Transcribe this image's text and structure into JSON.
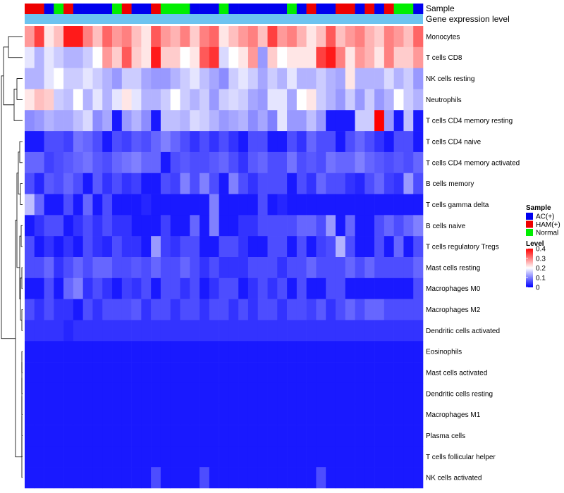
{
  "chart_data": {
    "type": "heatmap",
    "annotations": [
      {
        "name": "Sample"
      },
      {
        "name": "Gene expression level"
      }
    ],
    "sample_groups": [
      "HAM(+)",
      "HAM(+)",
      "AC(+)",
      "Normal",
      "HAM(+)",
      "AC(+)",
      "AC(+)",
      "AC(+)",
      "AC(+)",
      "Normal",
      "HAM(+)",
      "AC(+)",
      "AC(+)",
      "HAM(+)",
      "Normal",
      "Normal",
      "Normal",
      "AC(+)",
      "AC(+)",
      "AC(+)",
      "Normal",
      "AC(+)",
      "AC(+)",
      "AC(+)",
      "AC(+)",
      "AC(+)",
      "AC(+)",
      "Normal",
      "AC(+)",
      "HAM(+)",
      "AC(+)",
      "AC(+)",
      "HAM(+)",
      "HAM(+)",
      "AC(+)",
      "HAM(+)",
      "AC(+)",
      "HAM(+)",
      "Normal",
      "Normal",
      "AC(+)"
    ],
    "rows": [
      "Monocytes",
      "T cells CD8",
      "NK cells resting",
      "Neutrophils",
      "T cells CD4 memory resting",
      "T cells CD4 naive",
      "T cells CD4 memory activated",
      "B cells memory",
      "T cells gamma delta",
      "B cells naive",
      "T cells regulatory  Tregs",
      "Mast cells resting",
      "Macrophages M0",
      "Macrophages M2",
      "Dendritic cells activated",
      "Eosinophils",
      "Mast cells activated",
      "Dendritic cells resting",
      "Macrophages M1",
      "Plasma cells",
      "T cells follicular helper",
      "NK cells activated"
    ],
    "values": [
      [
        0.28,
        0.35,
        0.22,
        0.25,
        0.38,
        0.38,
        0.3,
        0.25,
        0.32,
        0.28,
        0.3,
        0.25,
        0.22,
        0.33,
        0.28,
        0.26,
        0.3,
        0.24,
        0.3,
        0.32,
        0.22,
        0.25,
        0.28,
        0.3,
        0.25,
        0.35,
        0.28,
        0.3,
        0.26,
        0.22,
        0.25,
        0.33,
        0.25,
        0.28,
        0.3,
        0.26,
        0.24,
        0.3,
        0.28,
        0.25,
        0.32
      ],
      [
        0.18,
        0.14,
        0.18,
        0.16,
        0.14,
        0.14,
        0.16,
        0.2,
        0.28,
        0.24,
        0.33,
        0.24,
        0.22,
        0.38,
        0.24,
        0.24,
        0.2,
        0.22,
        0.33,
        0.36,
        0.17,
        0.2,
        0.22,
        0.28,
        0.12,
        0.24,
        0.2,
        0.22,
        0.22,
        0.22,
        0.35,
        0.38,
        0.3,
        0.22,
        0.28,
        0.26,
        0.22,
        0.3,
        0.24,
        0.24,
        0.28
      ],
      [
        0.14,
        0.14,
        0.18,
        0.2,
        0.16,
        0.16,
        0.18,
        0.16,
        0.14,
        0.12,
        0.16,
        0.16,
        0.13,
        0.12,
        0.12,
        0.14,
        0.16,
        0.18,
        0.15,
        0.13,
        0.11,
        0.16,
        0.18,
        0.16,
        0.13,
        0.16,
        0.14,
        0.18,
        0.14,
        0.14,
        0.16,
        0.14,
        0.13,
        0.22,
        0.14,
        0.14,
        0.14,
        0.17,
        0.14,
        0.16,
        0.12
      ],
      [
        0.22,
        0.25,
        0.24,
        0.16,
        0.15,
        0.2,
        0.14,
        0.18,
        0.14,
        0.18,
        0.22,
        0.18,
        0.14,
        0.14,
        0.16,
        0.2,
        0.16,
        0.14,
        0.16,
        0.12,
        0.16,
        0.17,
        0.16,
        0.13,
        0.12,
        0.18,
        0.18,
        0.13,
        0.2,
        0.22,
        0.16,
        0.14,
        0.12,
        0.16,
        0.12,
        0.16,
        0.12,
        0.14,
        0.2,
        0.16,
        0.14
      ],
      [
        0.11,
        0.12,
        0.14,
        0.13,
        0.13,
        0.15,
        0.17,
        0.11,
        0.13,
        0.02,
        0.12,
        0.14,
        0.11,
        0.02,
        0.15,
        0.15,
        0.14,
        0.17,
        0.16,
        0.14,
        0.12,
        0.13,
        0.14,
        0.11,
        0.13,
        0.1,
        0.18,
        0.12,
        0.12,
        0.15,
        0.12,
        0.02,
        0.02,
        0.02,
        0.16,
        0.16,
        0.4,
        0.12,
        0.02,
        0.15,
        0.02
      ],
      [
        0.02,
        0.02,
        0.06,
        0.06,
        0.05,
        0.09,
        0.08,
        0.06,
        0.02,
        0.06,
        0.05,
        0.07,
        0.06,
        0.08,
        0.1,
        0.08,
        0.06,
        0.04,
        0.06,
        0.04,
        0.06,
        0.04,
        0.02,
        0.06,
        0.06,
        0.02,
        0.02,
        0.06,
        0.04,
        0.08,
        0.06,
        0.06,
        0.02,
        0.06,
        0.08,
        0.06,
        0.04,
        0.02,
        0.06,
        0.06,
        0.02
      ],
      [
        0.08,
        0.08,
        0.05,
        0.06,
        0.07,
        0.08,
        0.09,
        0.07,
        0.06,
        0.08,
        0.09,
        0.1,
        0.08,
        0.08,
        0.02,
        0.06,
        0.07,
        0.06,
        0.06,
        0.07,
        0.08,
        0.06,
        0.04,
        0.07,
        0.08,
        0.06,
        0.06,
        0.09,
        0.06,
        0.07,
        0.06,
        0.09,
        0.08,
        0.08,
        0.1,
        0.08,
        0.07,
        0.06,
        0.07,
        0.06,
        0.08
      ],
      [
        0.06,
        0.03,
        0.07,
        0.06,
        0.08,
        0.06,
        0.02,
        0.07,
        0.04,
        0.06,
        0.04,
        0.05,
        0.02,
        0.02,
        0.06,
        0.05,
        0.1,
        0.06,
        0.1,
        0.06,
        0.02,
        0.1,
        0.06,
        0.04,
        0.06,
        0.06,
        0.06,
        0.02,
        0.06,
        0.04,
        0.08,
        0.06,
        0.06,
        0.04,
        0.03,
        0.06,
        0.08,
        0.05,
        0.04,
        0.12,
        0.06
      ],
      [
        0.15,
        0.08,
        0.02,
        0.02,
        0.06,
        0.02,
        0.08,
        0.02,
        0.06,
        0.02,
        0.02,
        0.02,
        0.03,
        0.02,
        0.02,
        0.02,
        0.02,
        0.02,
        0.02,
        0.1,
        0.02,
        0.02,
        0.02,
        0.02,
        0.06,
        0.02,
        0.03,
        0.02,
        0.02,
        0.02,
        0.02,
        0.02,
        0.02,
        0.02,
        0.02,
        0.02,
        0.02,
        0.02,
        0.02,
        0.02,
        0.02
      ],
      [
        0.02,
        0.04,
        0.06,
        0.06,
        0.02,
        0.04,
        0.06,
        0.04,
        0.06,
        0.04,
        0.04,
        0.02,
        0.02,
        0.02,
        0.05,
        0.02,
        0.02,
        0.08,
        0.02,
        0.1,
        0.02,
        0.02,
        0.04,
        0.04,
        0.06,
        0.06,
        0.06,
        0.06,
        0.08,
        0.08,
        0.06,
        0.12,
        0.02,
        0.08,
        0.02,
        0.02,
        0.06,
        0.08,
        0.06,
        0.08,
        0.1
      ],
      [
        0.06,
        0.02,
        0.04,
        0.02,
        0.04,
        0.02,
        0.06,
        0.04,
        0.03,
        0.06,
        0.04,
        0.04,
        0.02,
        0.12,
        0.05,
        0.04,
        0.06,
        0.06,
        0.02,
        0.02,
        0.06,
        0.06,
        0.04,
        0.02,
        0.02,
        0.06,
        0.06,
        0.02,
        0.06,
        0.02,
        0.05,
        0.06,
        0.14,
        0.06,
        0.02,
        0.02,
        0.06,
        0.02,
        0.08,
        0.02,
        0.06
      ],
      [
        0.06,
        0.06,
        0.08,
        0.04,
        0.06,
        0.08,
        0.06,
        0.08,
        0.08,
        0.06,
        0.06,
        0.07,
        0.06,
        0.08,
        0.06,
        0.06,
        0.08,
        0.06,
        0.04,
        0.06,
        0.04,
        0.04,
        0.04,
        0.06,
        0.06,
        0.06,
        0.04,
        0.06,
        0.06,
        0.08,
        0.06,
        0.06,
        0.06,
        0.08,
        0.06,
        0.08,
        0.06,
        0.06,
        0.06,
        0.06,
        0.08
      ],
      [
        0.02,
        0.02,
        0.06,
        0.02,
        0.08,
        0.1,
        0.04,
        0.06,
        0.04,
        0.02,
        0.05,
        0.04,
        0.06,
        0.02,
        0.06,
        0.06,
        0.04,
        0.06,
        0.02,
        0.04,
        0.06,
        0.06,
        0.02,
        0.04,
        0.06,
        0.04,
        0.06,
        0.02,
        0.06,
        0.02,
        0.02,
        0.06,
        0.06,
        0.02,
        0.02,
        0.02,
        0.02,
        0.02,
        0.02,
        0.02,
        0.06
      ],
      [
        0.06,
        0.04,
        0.06,
        0.04,
        0.04,
        0.02,
        0.06,
        0.04,
        0.06,
        0.06,
        0.06,
        0.07,
        0.04,
        0.06,
        0.06,
        0.04,
        0.06,
        0.06,
        0.04,
        0.06,
        0.06,
        0.04,
        0.06,
        0.04,
        0.06,
        0.06,
        0.04,
        0.06,
        0.06,
        0.05,
        0.07,
        0.04,
        0.06,
        0.08,
        0.06,
        0.08,
        0.08,
        0.06,
        0.06,
        0.06,
        0.06
      ],
      [
        0.04,
        0.04,
        0.04,
        0.04,
        0.03,
        0.04,
        0.04,
        0.04,
        0.04,
        0.04,
        0.04,
        0.04,
        0.04,
        0.04,
        0.04,
        0.04,
        0.04,
        0.04,
        0.04,
        0.04,
        0.04,
        0.04,
        0.04,
        0.04,
        0.04,
        0.04,
        0.04,
        0.04,
        0.04,
        0.04,
        0.04,
        0.04,
        0.04,
        0.04,
        0.04,
        0.04,
        0.04,
        0.04,
        0.04,
        0.04,
        0.04
      ],
      [
        0.02,
        0.02,
        0.02,
        0.02,
        0.02,
        0.02,
        0.02,
        0.02,
        0.02,
        0.02,
        0.02,
        0.02,
        0.02,
        0.02,
        0.02,
        0.02,
        0.02,
        0.02,
        0.02,
        0.02,
        0.02,
        0.02,
        0.02,
        0.02,
        0.02,
        0.02,
        0.02,
        0.02,
        0.02,
        0.02,
        0.02,
        0.02,
        0.02,
        0.02,
        0.02,
        0.02,
        0.02,
        0.02,
        0.02,
        0.02,
        0.02
      ],
      [
        0.02,
        0.02,
        0.02,
        0.02,
        0.02,
        0.02,
        0.02,
        0.02,
        0.02,
        0.02,
        0.02,
        0.02,
        0.02,
        0.02,
        0.02,
        0.02,
        0.02,
        0.02,
        0.02,
        0.02,
        0.02,
        0.02,
        0.02,
        0.02,
        0.02,
        0.02,
        0.02,
        0.02,
        0.02,
        0.02,
        0.02,
        0.02,
        0.02,
        0.02,
        0.02,
        0.02,
        0.02,
        0.02,
        0.02,
        0.02,
        0.02
      ],
      [
        0.02,
        0.02,
        0.02,
        0.02,
        0.02,
        0.02,
        0.02,
        0.02,
        0.02,
        0.02,
        0.02,
        0.02,
        0.02,
        0.02,
        0.02,
        0.02,
        0.02,
        0.02,
        0.02,
        0.02,
        0.02,
        0.02,
        0.02,
        0.02,
        0.02,
        0.02,
        0.02,
        0.02,
        0.02,
        0.02,
        0.02,
        0.02,
        0.02,
        0.02,
        0.02,
        0.02,
        0.02,
        0.02,
        0.02,
        0.02,
        0.02
      ],
      [
        0.02,
        0.02,
        0.02,
        0.02,
        0.02,
        0.02,
        0.02,
        0.02,
        0.02,
        0.02,
        0.02,
        0.02,
        0.02,
        0.02,
        0.02,
        0.02,
        0.02,
        0.02,
        0.02,
        0.02,
        0.02,
        0.02,
        0.02,
        0.02,
        0.02,
        0.02,
        0.02,
        0.02,
        0.02,
        0.02,
        0.02,
        0.02,
        0.02,
        0.02,
        0.02,
        0.02,
        0.02,
        0.02,
        0.02,
        0.02,
        0.02
      ],
      [
        0.02,
        0.02,
        0.02,
        0.02,
        0.02,
        0.02,
        0.02,
        0.02,
        0.02,
        0.02,
        0.02,
        0.02,
        0.02,
        0.02,
        0.02,
        0.02,
        0.02,
        0.02,
        0.02,
        0.02,
        0.02,
        0.02,
        0.02,
        0.02,
        0.02,
        0.02,
        0.02,
        0.02,
        0.02,
        0.02,
        0.02,
        0.02,
        0.02,
        0.02,
        0.02,
        0.02,
        0.02,
        0.02,
        0.02,
        0.02,
        0.02
      ],
      [
        0.02,
        0.02,
        0.02,
        0.02,
        0.02,
        0.02,
        0.02,
        0.02,
        0.02,
        0.02,
        0.02,
        0.02,
        0.02,
        0.02,
        0.02,
        0.02,
        0.02,
        0.02,
        0.02,
        0.02,
        0.02,
        0.02,
        0.02,
        0.02,
        0.02,
        0.02,
        0.02,
        0.02,
        0.02,
        0.02,
        0.02,
        0.02,
        0.02,
        0.02,
        0.02,
        0.02,
        0.02,
        0.02,
        0.02,
        0.02,
        0.02
      ],
      [
        0.02,
        0.02,
        0.02,
        0.02,
        0.02,
        0.02,
        0.02,
        0.02,
        0.02,
        0.02,
        0.02,
        0.02,
        0.02,
        0.06,
        0.02,
        0.02,
        0.02,
        0.02,
        0.06,
        0.02,
        0.02,
        0.02,
        0.02,
        0.02,
        0.02,
        0.02,
        0.02,
        0.02,
        0.02,
        0.02,
        0.06,
        0.02,
        0.02,
        0.02,
        0.02,
        0.02,
        0.02,
        0.02,
        0.02,
        0.02,
        0.02
      ]
    ],
    "scale": {
      "min": 0,
      "max": 0.4,
      "low_color": "#0000ff",
      "mid_color": "#ffffff",
      "high_color": "#ff0000"
    },
    "legend": {
      "sample": {
        "title": "Sample",
        "entries": [
          {
            "label": "AC(+)",
            "color": "#0000ee"
          },
          {
            "label": "HAM(+)",
            "color": "#ee0000"
          },
          {
            "label": "Normal",
            "color": "#00ee00"
          }
        ]
      },
      "level": {
        "title": "Level",
        "ticks": [
          {
            "value": 0.4,
            "label": "0.4"
          },
          {
            "value": 0.3,
            "label": "0.3"
          },
          {
            "value": 0.2,
            "label": "0.2"
          },
          {
            "value": 0.1,
            "label": "0.1"
          },
          {
            "value": 0,
            "label": "0"
          }
        ]
      }
    },
    "expression_bar_color": "#6cc3f0",
    "legend_position": "right"
  }
}
